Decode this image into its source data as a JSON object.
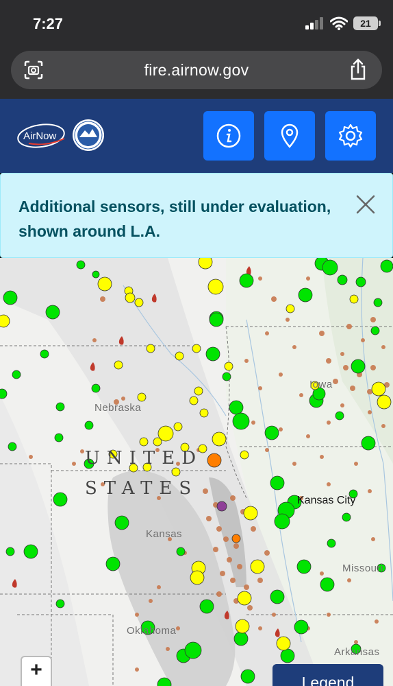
{
  "status": {
    "time": "7:27",
    "battery": "21"
  },
  "browser": {
    "url": "fire.airnow.gov"
  },
  "header": {
    "logo_text": "AirNow"
  },
  "notice": {
    "message": "Additional sensors, still under evaluation, shown around L.A."
  },
  "map": {
    "country_line1": "UNITED",
    "country_line2": "STATES",
    "state_labels": [
      "Nebraska",
      "Kansas",
      "Iowa",
      "Missouri",
      "Oklahoma",
      "Arkansas"
    ],
    "city_labels": [
      "Kansas City"
    ]
  },
  "controls": {
    "zoom_in": "+",
    "legend": "Legend"
  },
  "colors": {
    "header_bg": "#1e3d7a",
    "button_blue": "#1372ff",
    "notice_bg": "#cff4fc",
    "aqi_good": "#00e400",
    "aqi_moderate": "#ffff00",
    "aqi_usg": "#ff7e00",
    "sensor_dot": "#c8794f"
  }
}
